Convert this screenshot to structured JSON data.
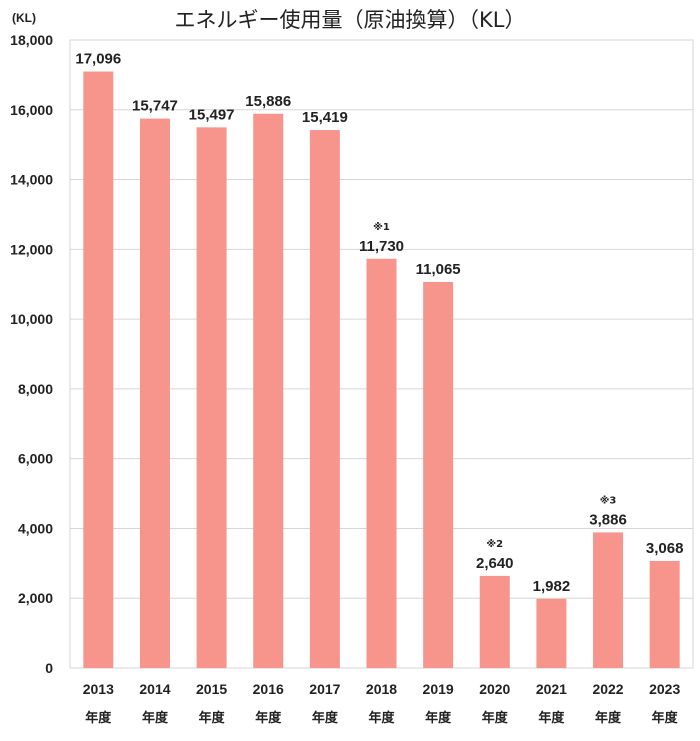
{
  "chart_data": {
    "type": "bar",
    "title": "エネルギー使用量（原油換算）（KL）",
    "unit_label": "(KL)",
    "categories": [
      "2013",
      "2014",
      "2015",
      "2016",
      "2017",
      "2018",
      "2019",
      "2020",
      "2021",
      "2022",
      "2023"
    ],
    "category_suffix": "年度",
    "values": [
      17096,
      15747,
      15497,
      15886,
      15419,
      11730,
      11065,
      2640,
      1982,
      3886,
      3068
    ],
    "value_labels": [
      "17,096",
      "15,747",
      "15,497",
      "15,886",
      "15,419",
      "11,730",
      "11,065",
      "2,640",
      "1,982",
      "3,886",
      "3,068"
    ],
    "notes": [
      "",
      "",
      "",
      "",
      "",
      "※1",
      "",
      "※2",
      "",
      "※3",
      ""
    ],
    "ylim": [
      0,
      18000
    ],
    "yticks": [
      0,
      2000,
      4000,
      6000,
      8000,
      10000,
      12000,
      14000,
      16000,
      18000
    ],
    "ytick_labels": [
      "0",
      "2,000",
      "4,000",
      "6,000",
      "8,000",
      "10,000",
      "12,000",
      "14,000",
      "16,000",
      "18,000"
    ],
    "grid": true,
    "bar_color": "#f7958c"
  }
}
